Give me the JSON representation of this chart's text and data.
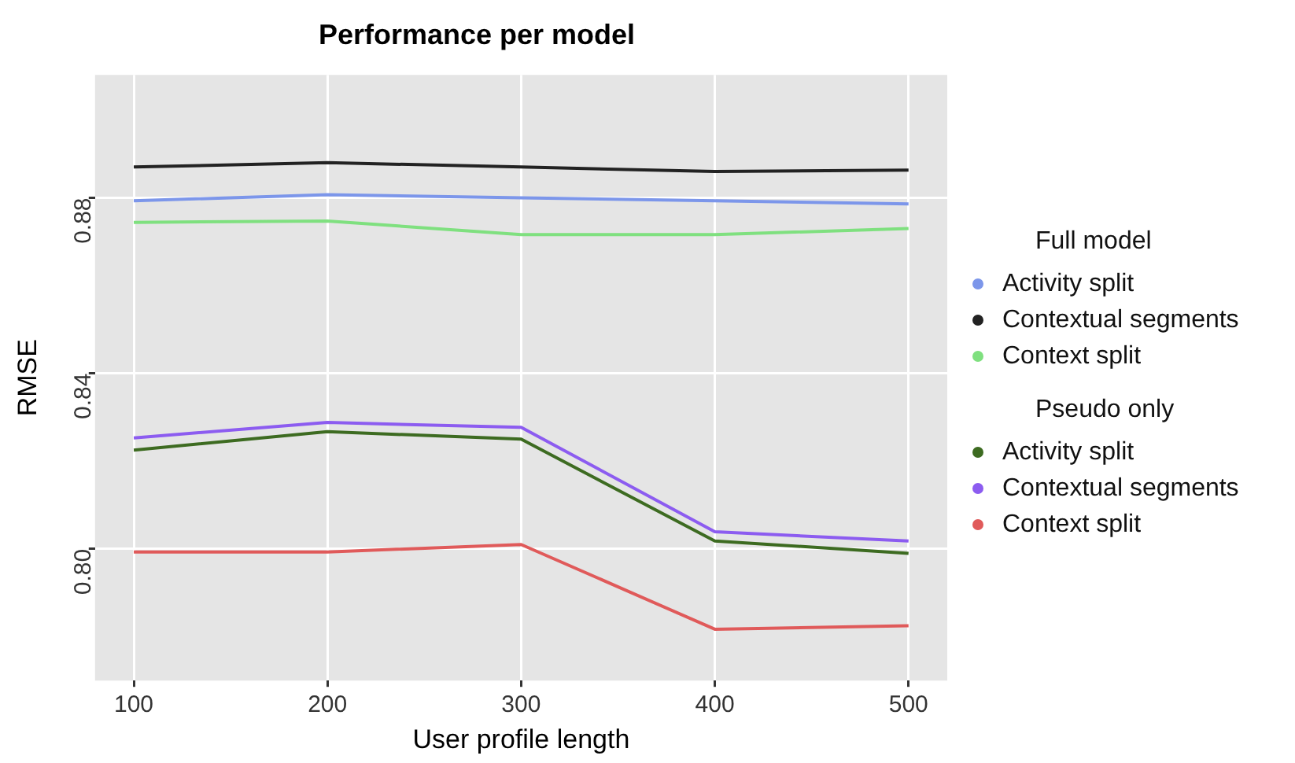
{
  "chart_data": {
    "type": "line",
    "title": "Performance per model",
    "xlabel": "User profile length",
    "ylabel": "RMSE",
    "legend_title": "Full model",
    "annotations": [
      "Pseudo only"
    ],
    "x": [
      100,
      200,
      300,
      400,
      500
    ],
    "series": [
      {
        "name": "Activity split",
        "color": "#7c96ea",
        "values": [
          0.8793,
          0.8807,
          0.88,
          0.8793,
          0.8786
        ]
      },
      {
        "name": "Contextual segments",
        "color": "#222222",
        "values": [
          0.887,
          0.888,
          0.887,
          0.886,
          0.8863
        ]
      },
      {
        "name": "Context split",
        "color": "#7fe07f",
        "values": [
          0.8744,
          0.8747,
          0.8716,
          0.8716,
          0.873
        ]
      },
      {
        "name": "Activity split",
        "color": "#3d6b21",
        "values": [
          0.8225,
          0.8267,
          0.825,
          0.8018,
          0.799
        ]
      },
      {
        "name": "Contextual segments",
        "color": "#8c5cf0",
        "values": [
          0.8253,
          0.8288,
          0.8277,
          0.8039,
          0.8018
        ]
      },
      {
        "name": "Context split",
        "color": "#e05a5a",
        "values": [
          0.7993,
          0.7993,
          0.801,
          0.7817,
          0.7825
        ]
      }
    ],
    "xlim": [
      80,
      520
    ],
    "xticks": [
      100,
      200,
      300,
      400,
      500
    ],
    "ylim": [
      0.77,
      0.908
    ],
    "yticks": [
      {
        "value": 0.8,
        "label": "0.80"
      },
      {
        "value": 0.84,
        "label": "0.84"
      },
      {
        "value": 0.88,
        "label": "0.88"
      }
    ],
    "grid": true,
    "legend": "right",
    "line_style": "solid"
  }
}
